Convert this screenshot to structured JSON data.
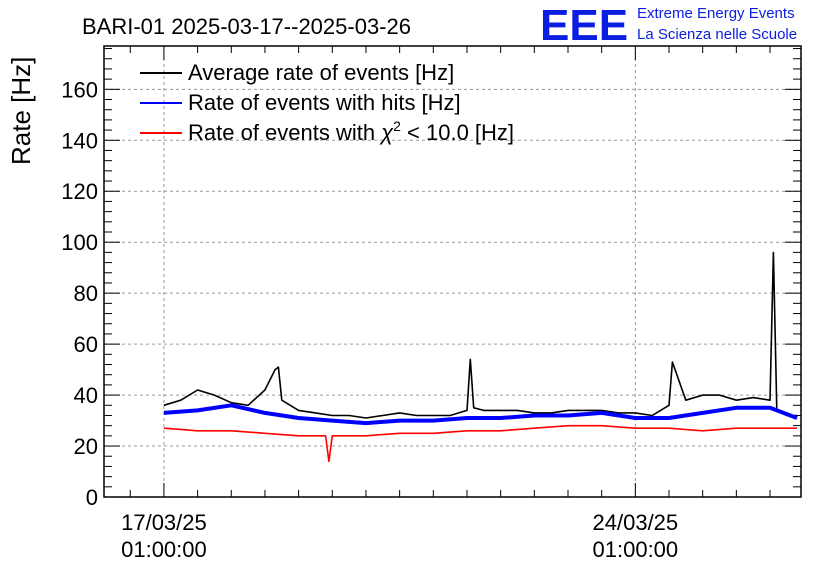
{
  "chart_data": {
    "type": "line",
    "title": "BARI-01 2025-03-17--2025-03-26",
    "ylabel": "Rate [Hz]",
    "xlabel": "",
    "ylim": [
      0,
      177
    ],
    "xlim_days": [
      -0.89,
      9.46
    ],
    "y_ticks": [
      0,
      20,
      40,
      60,
      80,
      100,
      120,
      140,
      160
    ],
    "x_ticks": [
      {
        "day": 0,
        "label_date": "17/03/25",
        "label_time": "01:00:00"
      },
      {
        "day": 7,
        "label_date": "24/03/25",
        "label_time": "01:00:00"
      }
    ],
    "grid": true,
    "legend_position": "top-left",
    "series": [
      {
        "name": "Average rate of events [Hz]",
        "color": "#000000",
        "x_day": [
          0,
          0.25,
          0.5,
          0.75,
          1.0,
          1.25,
          1.5,
          1.65,
          1.7,
          1.75,
          2.0,
          2.25,
          2.5,
          2.75,
          3.0,
          3.25,
          3.5,
          3.75,
          4.0,
          4.25,
          4.5,
          4.55,
          4.6,
          4.75,
          5.0,
          5.25,
          5.5,
          5.75,
          6.0,
          6.25,
          6.5,
          6.75,
          7.0,
          7.25,
          7.5,
          7.55,
          7.75,
          8.0,
          8.25,
          8.5,
          8.75,
          9.0,
          9.05,
          9.1,
          9.25,
          9.4
        ],
        "values": [
          36,
          38,
          42,
          40,
          37,
          36,
          42,
          50,
          51,
          38,
          34,
          33,
          32,
          32,
          31,
          32,
          33,
          32,
          32,
          32,
          34,
          54,
          35,
          34,
          34,
          34,
          33,
          33,
          34,
          34,
          34,
          33,
          33,
          32,
          36,
          53,
          38,
          40,
          40,
          38,
          39,
          38,
          96,
          34,
          32,
          32
        ]
      },
      {
        "name": "Rate of events with hits [Hz]",
        "color": "#0000ff",
        "x_day": [
          0,
          0.5,
          1.0,
          1.5,
          2.0,
          2.5,
          3.0,
          3.5,
          4.0,
          4.5,
          5.0,
          5.5,
          6.0,
          6.5,
          7.0,
          7.5,
          8.0,
          8.5,
          9.0,
          9.4
        ],
        "values": [
          33,
          34,
          36,
          33,
          31,
          30,
          29,
          30,
          30,
          31,
          31,
          32,
          32,
          33,
          31,
          31,
          33,
          35,
          35,
          31
        ]
      },
      {
        "name": "Rate of events with χ² < 10.0 [Hz]",
        "legend_text": "Rate of events with",
        "legend_sup": "2",
        "legend_tail": " < 10.0 [Hz]",
        "color": "#ff0000",
        "x_day": [
          0,
          0.5,
          1.0,
          1.5,
          2.0,
          2.4,
          2.45,
          2.5,
          3.0,
          3.5,
          4.0,
          4.5,
          5.0,
          5.5,
          6.0,
          6.5,
          7.0,
          7.5,
          8.0,
          8.5,
          9.0,
          9.4
        ],
        "values": [
          27,
          26,
          26,
          25,
          24,
          24,
          14,
          24,
          24,
          25,
          25,
          26,
          26,
          27,
          28,
          28,
          27,
          27,
          26,
          27,
          27,
          27
        ]
      }
    ]
  },
  "logo": {
    "mark": "EEE",
    "line1": "Extreme Energy Events",
    "line2": "La Scienza nelle Scuole"
  }
}
